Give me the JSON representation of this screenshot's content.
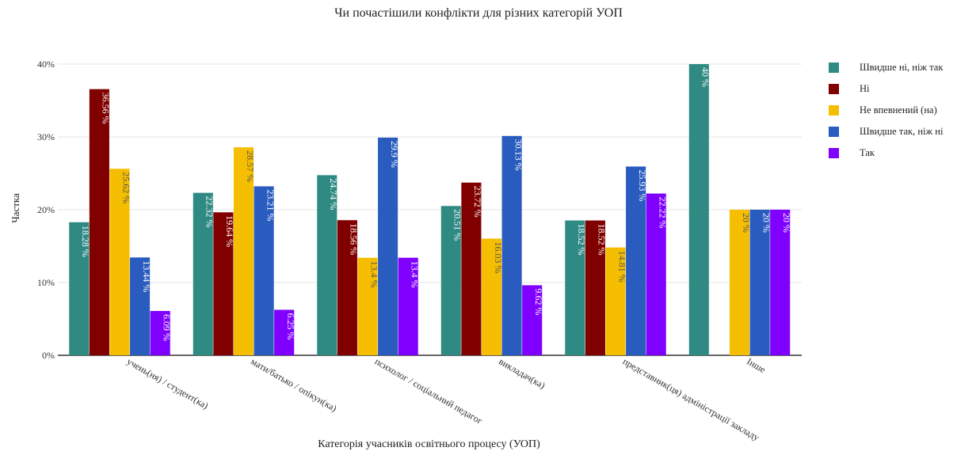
{
  "chart_data": {
    "type": "bar",
    "title": "Чи почастішили конфлікти для різних категорій УОП",
    "xlabel": "Категорія учасників освітнього процесу (УОП)",
    "ylabel": "Частка",
    "ylim": [
      0,
      40
    ],
    "yticks": [
      "0%",
      "10%",
      "20%",
      "30%",
      "40%"
    ],
    "grid": true,
    "legend_position": "right",
    "categories": [
      "учень(ня) / студент(ка)",
      "мати/батько / опікун(ка)",
      "психолог / соціальний педагог",
      "викладач(ка)",
      "представник(ця) адміністрації закладу",
      "Інше"
    ],
    "series": [
      {
        "name": "Швидше ні, ніж так",
        "color": "#2f8a84",
        "values": [
          18.28,
          22.32,
          24.74,
          20.51,
          18.52,
          40
        ],
        "labels": [
          "18.28 %",
          "22.32 %",
          "24.74 %",
          "20.51 %",
          "18.52 %",
          "40 %"
        ]
      },
      {
        "name": "Ні",
        "color": "#800000",
        "values": [
          36.56,
          19.64,
          18.56,
          23.72,
          18.52,
          null
        ],
        "labels": [
          "36.56 %",
          "19.64 %",
          "18.56 %",
          "23.72 %",
          "18.52 %",
          ""
        ]
      },
      {
        "name": "Не впевнений (на)",
        "color": "#f5be00",
        "values": [
          25.62,
          28.57,
          13.4,
          16.03,
          14.81,
          20
        ],
        "labels": [
          "25.62 %",
          "28.57 %",
          "13.4 %",
          "16.03 %",
          "14.81 %",
          "20 %"
        ]
      },
      {
        "name": "Швидше так, ніж ні",
        "color": "#2a5cbf",
        "values": [
          13.44,
          23.21,
          29.9,
          30.13,
          25.93,
          20
        ],
        "labels": [
          "13.44 %",
          "23.21 %",
          "29.9 %",
          "30.13 %",
          "25.93 %",
          "20 %"
        ]
      },
      {
        "name": "Так",
        "color": "#8000ff",
        "values": [
          6.09,
          6.25,
          13.4,
          9.62,
          22.22,
          20
        ],
        "labels": [
          "6.09 %",
          "6.25 %",
          "13.4 %",
          "9.62 %",
          "22.22 %",
          "20 %"
        ]
      }
    ]
  }
}
